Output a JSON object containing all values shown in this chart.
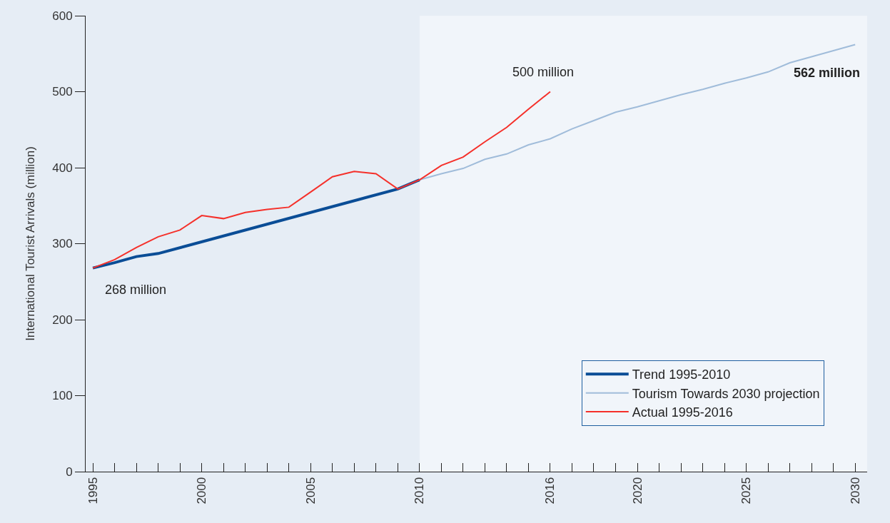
{
  "chart_data": {
    "type": "line",
    "ylabel": "International Tourist Arrivals (million)",
    "xlim": [
      1994.67,
      2030.55
    ],
    "xticks": [
      1995,
      {
        "value": 1996,
        "label": null
      },
      {
        "value": 1997,
        "label": null
      },
      {
        "value": 1998,
        "label": null
      },
      {
        "value": 1999,
        "label": null
      },
      2000,
      {
        "value": 2001,
        "label": null
      },
      {
        "value": 2002,
        "label": null
      },
      {
        "value": 2003,
        "label": null
      },
      {
        "value": 2004,
        "label": null
      },
      2005,
      {
        "value": 2006,
        "label": null
      },
      {
        "value": 2007,
        "label": null
      },
      {
        "value": 2008,
        "label": null
      },
      {
        "value": 2009,
        "label": null
      },
      2010,
      {
        "value": 2011,
        "label": null
      },
      {
        "value": 2012,
        "label": null
      },
      {
        "value": 2013,
        "label": null
      },
      {
        "value": 2014,
        "label": null
      },
      {
        "value": 2015,
        "label": null
      },
      2016,
      {
        "value": 2017,
        "label": null
      },
      {
        "value": 2018,
        "label": null
      },
      {
        "value": 2019,
        "label": null
      },
      2020,
      {
        "value": 2021,
        "label": null
      },
      {
        "value": 2022,
        "label": null
      },
      {
        "value": 2023,
        "label": null
      },
      {
        "value": 2024,
        "label": null
      },
      2025,
      {
        "value": 2026,
        "label": null
      },
      {
        "value": 2027,
        "label": null
      },
      {
        "value": 2028,
        "label": null
      },
      {
        "value": 2029,
        "label": null
      },
      2030
    ],
    "ylim": [
      0,
      600
    ],
    "yticks": [
      0,
      100,
      200,
      300,
      400,
      500,
      600
    ],
    "grid": false,
    "legend": "bottom right",
    "marker": "none",
    "line_style": "solid",
    "bands": [
      {
        "axis": "x",
        "from": 2010,
        "to": 2030.55,
        "color": "#f1f5fa"
      }
    ],
    "series": [
      {
        "name": "Trend 1995-2010",
        "color": "#0a4d96",
        "x": [
          1995,
          1996,
          1997,
          1998,
          2009,
          2010
        ],
        "values": [
          268,
          275,
          283,
          287,
          372,
          384
        ]
      },
      {
        "name": "Tourism Towards 2030 projection",
        "color": "#a0bcda",
        "x": [
          2010,
          2011,
          2012,
          2013,
          2014,
          2015,
          2016,
          2017,
          2018,
          2019,
          2020,
          2021,
          2022,
          2023,
          2024,
          2025,
          2026,
          2027,
          2028,
          2029,
          2030
        ],
        "values": [
          384,
          392,
          399,
          411,
          418,
          430,
          438,
          451,
          462,
          473,
          480,
          488,
          496,
          503,
          511,
          518,
          526,
          538,
          546,
          554,
          562
        ]
      },
      {
        "name": "Actual 1995-2016",
        "color": "#f5302a",
        "x": [
          1995,
          1996,
          1997,
          1998,
          1999,
          2000,
          2001,
          2002,
          2003,
          2004,
          2005,
          2006,
          2007,
          2008,
          2009,
          2010,
          2011,
          2012,
          2013,
          2014,
          2015,
          2016
        ],
        "values": [
          268,
          279,
          295,
          309,
          318,
          337,
          333,
          341,
          345,
          348,
          368,
          388,
          395,
          392,
          372,
          384,
          403,
          414,
          434,
          453,
          477,
          500
        ]
      }
    ],
    "annotations": [
      {
        "text": "268 million",
        "x": 1995,
        "y": 268
      },
      {
        "text": "500 million",
        "x": 2016,
        "y": 500
      },
      {
        "text": "562 million",
        "x": 2030,
        "y": 562
      }
    ]
  }
}
